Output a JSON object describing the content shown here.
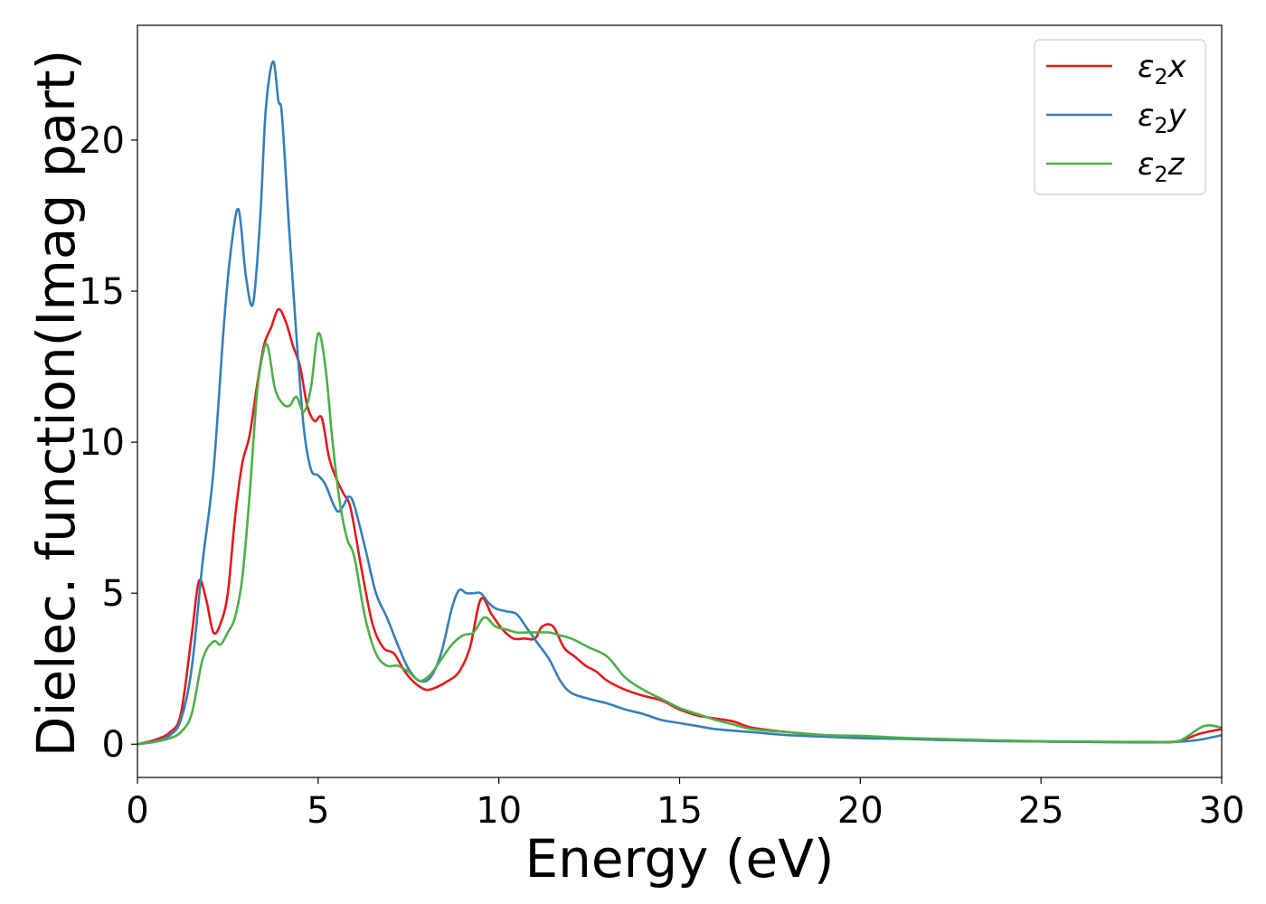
{
  "chart_data": {
    "type": "line",
    "title": "",
    "xlabel": "Energy (eV)",
    "ylabel": "Dielec. function(Imag part)",
    "xlim": [
      0,
      30
    ],
    "ylim": [
      -1.1,
      23.8
    ],
    "xticks": [
      0,
      5,
      10,
      15,
      20,
      25,
      30
    ],
    "yticks": [
      0,
      5,
      10,
      15,
      20
    ],
    "grid": false,
    "legend_position": "top-right",
    "series": [
      {
        "name": "ε₂x",
        "legend_base": "ε",
        "legend_sub": "2",
        "legend_var": "x",
        "color": "#e41a1c",
        "x": [
          0,
          0.5,
          0.9,
          1.2,
          1.5,
          1.7,
          1.9,
          2.1,
          2.3,
          2.5,
          2.7,
          2.9,
          3.1,
          3.3,
          3.5,
          3.7,
          3.9,
          4.1,
          4.3,
          4.5,
          4.7,
          4.9,
          5.1,
          5.3,
          5.5,
          5.7,
          5.9,
          6.2,
          6.5,
          6.8,
          7.1,
          7.4,
          7.7,
          8.0,
          8.3,
          8.6,
          8.9,
          9.2,
          9.5,
          9.8,
          10.1,
          10.4,
          10.7,
          11.0,
          11.2,
          11.5,
          11.8,
          12.1,
          12.4,
          12.7,
          13.0,
          13.5,
          14.0,
          14.5,
          15.0,
          15.5,
          16.0,
          16.5,
          17.0,
          18.0,
          19.0,
          20.0,
          21.0,
          22.0,
          23.0,
          24.0,
          25.0,
          26.0,
          27.0,
          28.0,
          28.8,
          29.4,
          30.0
        ],
        "values": [
          0,
          0.15,
          0.4,
          1.0,
          3.6,
          5.4,
          4.8,
          3.7,
          4.0,
          5.0,
          7.5,
          9.3,
          10.2,
          11.8,
          13.2,
          13.8,
          14.4,
          14.0,
          13.2,
          12.5,
          11.2,
          10.7,
          10.8,
          9.5,
          8.8,
          8.3,
          7.8,
          5.8,
          4.0,
          3.2,
          3.0,
          2.4,
          2.0,
          1.8,
          1.9,
          2.1,
          2.4,
          3.2,
          4.8,
          4.3,
          3.8,
          3.5,
          3.5,
          3.5,
          3.9,
          3.9,
          3.2,
          2.9,
          2.6,
          2.4,
          2.1,
          1.8,
          1.6,
          1.45,
          1.15,
          0.95,
          0.85,
          0.75,
          0.55,
          0.4,
          0.3,
          0.25,
          0.2,
          0.15,
          0.13,
          0.11,
          0.09,
          0.08,
          0.07,
          0.07,
          0.1,
          0.35,
          0.5
        ]
      },
      {
        "name": "ε₂y",
        "legend_base": "ε",
        "legend_sub": "2",
        "legend_var": "y",
        "color": "#377eb8",
        "x": [
          0,
          0.5,
          0.9,
          1.2,
          1.5,
          1.8,
          2.1,
          2.4,
          2.6,
          2.8,
          3.0,
          3.2,
          3.4,
          3.55,
          3.75,
          3.9,
          4.0,
          4.2,
          4.4,
          4.6,
          4.8,
          5.0,
          5.2,
          5.4,
          5.55,
          5.7,
          5.85,
          6.0,
          6.3,
          6.6,
          6.9,
          7.2,
          7.5,
          7.8,
          8.1,
          8.4,
          8.7,
          8.9,
          9.1,
          9.3,
          9.5,
          9.7,
          9.9,
          10.2,
          10.5,
          10.8,
          11.1,
          11.4,
          11.7,
          12.0,
          12.5,
          13.0,
          13.5,
          14.0,
          14.5,
          15.0,
          15.5,
          16.0,
          17.0,
          18.0,
          19.0,
          20.0,
          21.0,
          22.0,
          23.0,
          24.0,
          25.0,
          26.0,
          27.0,
          28.0,
          28.8,
          29.4,
          30.0
        ],
        "values": [
          0,
          0.1,
          0.3,
          0.8,
          2.5,
          6.0,
          9.0,
          14.0,
          16.5,
          17.7,
          15.5,
          14.6,
          17.5,
          21.0,
          22.6,
          21.3,
          20.8,
          17.0,
          13.5,
          10.5,
          9.1,
          8.9,
          8.6,
          8.0,
          7.7,
          7.9,
          8.2,
          7.9,
          6.5,
          5.0,
          4.2,
          3.3,
          2.5,
          2.1,
          2.2,
          3.0,
          4.5,
          5.1,
          5.0,
          5.0,
          5.0,
          4.7,
          4.5,
          4.4,
          4.3,
          3.8,
          3.3,
          2.8,
          2.1,
          1.7,
          1.5,
          1.35,
          1.15,
          1.0,
          0.8,
          0.7,
          0.6,
          0.5,
          0.4,
          0.3,
          0.25,
          0.2,
          0.18,
          0.15,
          0.12,
          0.1,
          0.09,
          0.08,
          0.07,
          0.06,
          0.08,
          0.15,
          0.3
        ]
      },
      {
        "name": "ε₂z",
        "legend_base": "ε",
        "legend_sub": "2",
        "legend_var": "z",
        "color": "#4daf4a",
        "x": [
          0,
          0.5,
          0.9,
          1.2,
          1.5,
          1.8,
          2.1,
          2.3,
          2.5,
          2.7,
          2.9,
          3.1,
          3.3,
          3.45,
          3.6,
          3.8,
          4.0,
          4.2,
          4.4,
          4.6,
          4.8,
          5.0,
          5.2,
          5.4,
          5.6,
          5.8,
          6.0,
          6.3,
          6.6,
          6.9,
          7.2,
          7.5,
          7.8,
          8.1,
          8.4,
          8.7,
          9.0,
          9.3,
          9.6,
          9.9,
          10.2,
          10.5,
          10.8,
          11.1,
          11.4,
          11.7,
          12.0,
          12.5,
          13.0,
          13.5,
          14.0,
          14.5,
          15.0,
          15.5,
          16.0,
          16.5,
          17.0,
          18.0,
          19.0,
          20.0,
          21.0,
          22.0,
          23.0,
          24.0,
          25.0,
          26.0,
          27.0,
          28.0,
          28.8,
          29.5,
          30.0
        ],
        "values": [
          0,
          0.08,
          0.2,
          0.4,
          1.0,
          2.8,
          3.4,
          3.3,
          3.7,
          4.2,
          5.5,
          8.2,
          11.5,
          12.8,
          13.2,
          11.8,
          11.3,
          11.2,
          11.5,
          11.0,
          11.8,
          13.6,
          12.5,
          10.0,
          8.0,
          6.8,
          6.2,
          4.2,
          3.0,
          2.6,
          2.6,
          2.4,
          2.1,
          2.3,
          2.8,
          3.3,
          3.6,
          3.7,
          4.2,
          3.9,
          3.8,
          3.7,
          3.7,
          3.7,
          3.7,
          3.6,
          3.5,
          3.2,
          2.9,
          2.2,
          1.8,
          1.5,
          1.2,
          1.0,
          0.8,
          0.65,
          0.5,
          0.4,
          0.3,
          0.28,
          0.22,
          0.18,
          0.15,
          0.12,
          0.1,
          0.09,
          0.08,
          0.08,
          0.1,
          0.6,
          0.55
        ]
      }
    ]
  }
}
